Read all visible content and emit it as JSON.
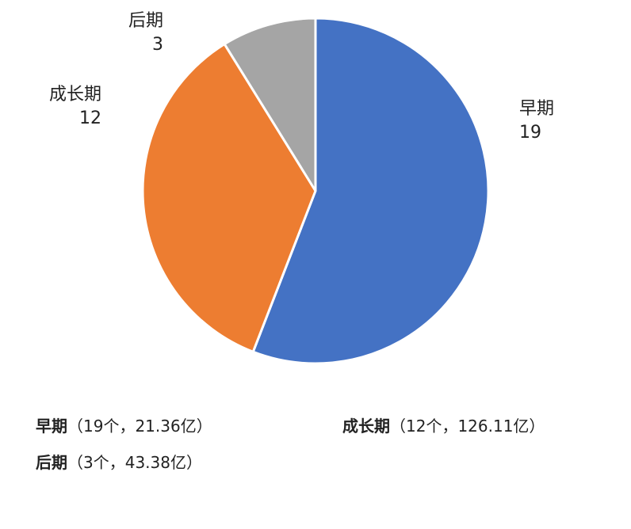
{
  "chart_data": {
    "type": "pie",
    "title": "",
    "start_angle_deg": 0,
    "direction": "clockwise",
    "slices": [
      {
        "label": "早期",
        "value": 19,
        "color": "#4472C4"
      },
      {
        "label": "成长期",
        "value": 12,
        "color": "#ED7D31"
      },
      {
        "label": "后期",
        "value": 3,
        "color": "#A5A5A5"
      }
    ],
    "slice_border_color": "#ffffff",
    "legend": {
      "placement": "bottom",
      "items": [
        {
          "stage": "早期",
          "detail": "（19个，21.36亿）"
        },
        {
          "stage": "成长期",
          "detail": "（12个，126.11亿）"
        },
        {
          "stage": "后期",
          "detail": "（3个，43.38亿）"
        }
      ]
    }
  }
}
